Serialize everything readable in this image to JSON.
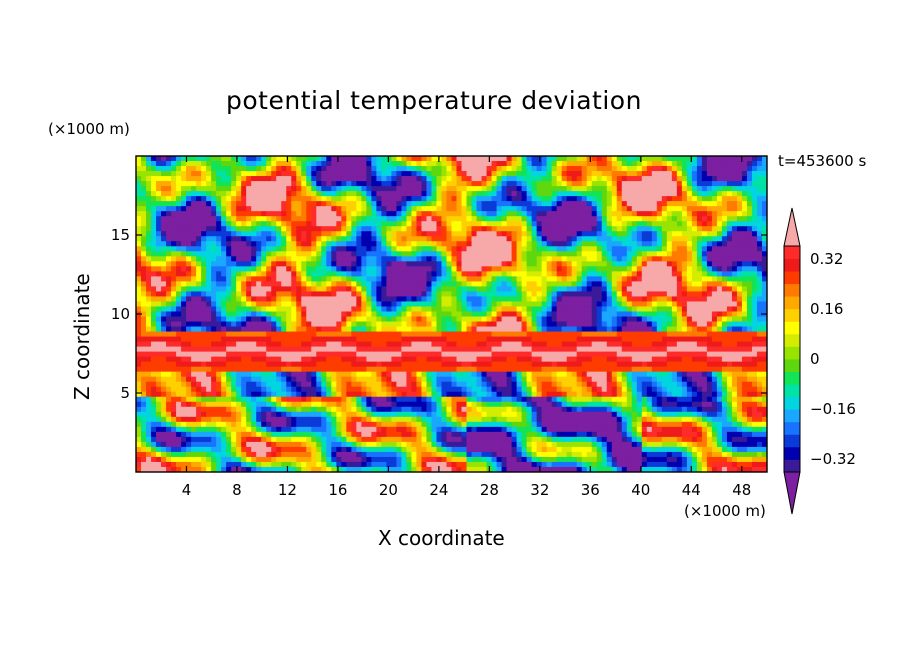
{
  "chart_data": {
    "type": "heatmap",
    "title": "potential temperature deviation",
    "xlabel": "X coordinate",
    "ylabel": "Z coordinate",
    "x_unit_label": "(×1000 m)",
    "y_unit_label": "(×1000 m)",
    "time_label": "t=453600 s",
    "xlim": [
      0,
      50
    ],
    "ylim": [
      0,
      20
    ],
    "x_ticks": [
      "4",
      "8",
      "12",
      "16",
      "20",
      "24",
      "28",
      "32",
      "36",
      "40",
      "44",
      "48"
    ],
    "y_ticks": [
      "5",
      "10",
      "15"
    ],
    "colorbar": {
      "levels": [
        -0.4,
        -0.36,
        -0.32,
        -0.28,
        -0.24,
        -0.2,
        -0.16,
        -0.12,
        -0.08,
        -0.04,
        0,
        0.04,
        0.08,
        0.12,
        0.16,
        0.2,
        0.24,
        0.28,
        0.32,
        0.36,
        0.4
      ],
      "labels": [
        "0.32",
        "0.16",
        "0",
        "−0.16",
        "−0.32"
      ],
      "colors": [
        "#7d1fa1",
        "#3b1a9a",
        "#0000b0",
        "#0a3ad8",
        "#1874ff",
        "#1aa8ff",
        "#00d5e0",
        "#00e3a4",
        "#13e356",
        "#5ed70f",
        "#98e300",
        "#d4ec00",
        "#ffff00",
        "#ffd000",
        "#ffa800",
        "#ff7a00",
        "#ff3c00",
        "#ef1a1a",
        "#ff2b2b",
        "#f7a8a8"
      ],
      "extend": "both"
    },
    "grid": false
  }
}
